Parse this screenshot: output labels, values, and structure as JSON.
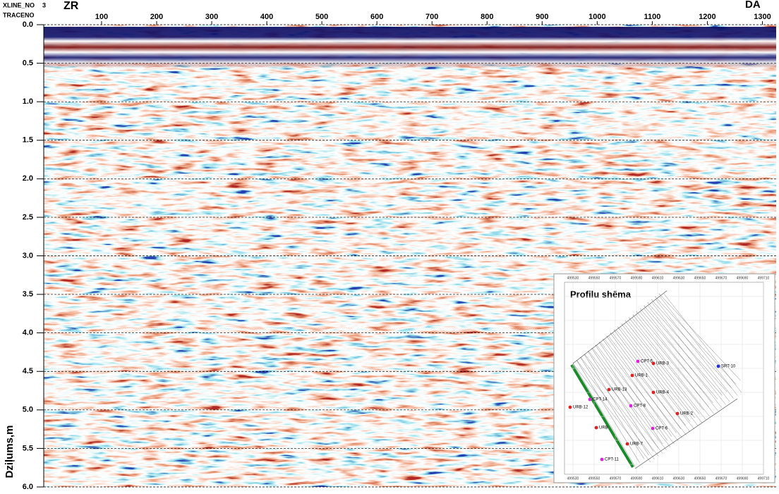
{
  "chart_data": {
    "type": "radargram",
    "header": {
      "xline_label": "XLINE_NO",
      "xline_value": "3",
      "trace_label": "TRACENO"
    },
    "left_label": "ZR",
    "right_label": "DA",
    "ylabel": "Dziļums,m",
    "xlim": [
      -5,
      1325
    ],
    "xticks": [
      100,
      200,
      300,
      400,
      500,
      600,
      700,
      800,
      900,
      1000,
      1100,
      1200,
      1300
    ],
    "ylim": [
      0,
      6
    ],
    "yticks": [
      {
        "value": 0,
        "label": "0.0"
      },
      0.5,
      {
        "value": 1,
        "label": "1.0"
      },
      1.5,
      {
        "value": 2,
        "label": "2.0"
      },
      2.5,
      {
        "value": 3,
        "label": "3.0"
      },
      3.5,
      {
        "value": 4,
        "label": "4.0"
      },
      4.5,
      {
        "value": 5,
        "label": "5.0"
      },
      5.5,
      {
        "value": 6,
        "label": "6.0"
      }
    ],
    "grid": true,
    "inset": {
      "title": "Profilu shēma",
      "xticks": [
        "499530",
        "499550",
        "499570",
        "499590",
        "499610",
        "499630",
        "499650",
        "499670",
        "499690",
        "499710"
      ],
      "points": [
        {
          "name": "CPT-5",
          "color": "#e020e0"
        },
        {
          "name": "URB-3",
          "color": "#e02020"
        },
        {
          "name": "URB-1",
          "color": "#e02020"
        },
        {
          "name": "SRT-10",
          "color": "#2030d0"
        },
        {
          "name": "URB-13",
          "color": "#e02020"
        },
        {
          "name": "URB-4",
          "color": "#e02020"
        },
        {
          "name": "URB-12",
          "color": "#e02020"
        },
        {
          "name": "CPT-14",
          "color": "#e020e0"
        },
        {
          "name": "CPT-8",
          "color": "#e020e0"
        },
        {
          "name": "URB-2",
          "color": "#e02020"
        },
        {
          "name": "URB",
          "color": "#e02020"
        },
        {
          "name": "CPT-6",
          "color": "#e020e0"
        },
        {
          "name": "URB-7",
          "color": "#e02020"
        },
        {
          "name": "CPT-11",
          "color": "#e020e0"
        }
      ]
    }
  }
}
